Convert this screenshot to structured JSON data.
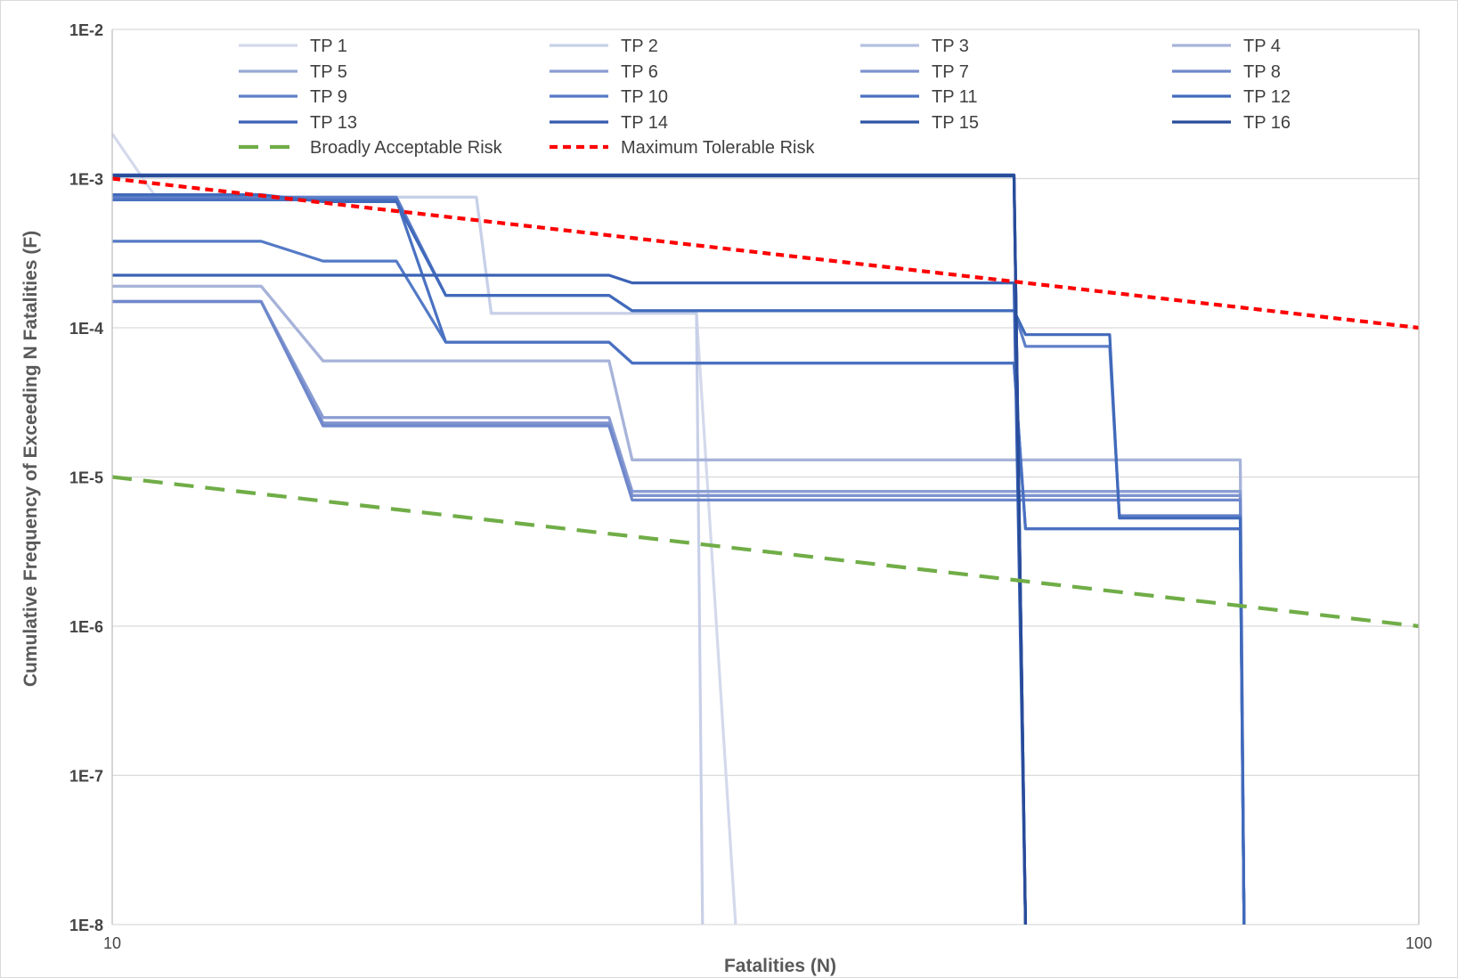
{
  "chart_data": {
    "type": "line",
    "title": "",
    "xlabel": "Fatalities (N)",
    "ylabel": "Cumulative Frequency of Exceeding  N Fatalities (F)",
    "x_scale": "log",
    "y_scale": "log",
    "xlim": [
      10,
      100
    ],
    "ylim": [
      1e-08,
      0.01
    ],
    "x_ticks": [
      {
        "value": 10,
        "label": "10"
      },
      {
        "value": 100,
        "label": "100"
      }
    ],
    "y_ticks": [
      {
        "value": 0.01,
        "label": "1E-2"
      },
      {
        "value": 0.001,
        "label": "1E-3"
      },
      {
        "value": 0.0001,
        "label": "1E-4"
      },
      {
        "value": 1e-05,
        "label": "1E-5"
      },
      {
        "value": 1e-06,
        "label": "1E-6"
      },
      {
        "value": 1e-07,
        "label": "1E-7"
      },
      {
        "value": 1e-08,
        "label": "1E-8"
      }
    ],
    "grid": "horizontal",
    "legend_position": "top",
    "series": [
      {
        "name": "TP 1",
        "color": "#d4d9ec",
        "style": "solid",
        "points": [
          [
            10,
            0.002
          ],
          [
            10.8,
            0.00075
          ],
          [
            19,
            0.00075
          ],
          [
            19.5,
            0.000125
          ],
          [
            28,
            0.000125
          ],
          [
            30,
            1e-08
          ]
        ]
      },
      {
        "name": "TP 2",
        "color": "#c8d0e8",
        "style": "solid",
        "points": [
          [
            10,
            0.00078
          ],
          [
            10.8,
            0.00075
          ],
          [
            19,
            0.00075
          ],
          [
            19.5,
            0.000125
          ],
          [
            28,
            0.000125
          ],
          [
            28.3,
            1e-08
          ]
        ]
      },
      {
        "name": "TP 3",
        "color": "#b4c0e0",
        "style": "solid",
        "points": [
          [
            10,
            0.00019
          ],
          [
            13,
            0.00019
          ],
          [
            14.5,
            6e-05
          ],
          [
            24,
            6e-05
          ],
          [
            25,
            1.3e-05
          ],
          [
            73,
            1.3e-05
          ],
          [
            73.5,
            1e-08
          ]
        ]
      },
      {
        "name": "TP 4",
        "color": "#a7b3d9",
        "style": "solid",
        "points": [
          [
            10,
            0.00019
          ],
          [
            13,
            0.00019
          ],
          [
            14.5,
            6e-05
          ],
          [
            24,
            6e-05
          ],
          [
            25,
            1.3e-05
          ],
          [
            73,
            1.3e-05
          ],
          [
            73.5,
            1e-08
          ]
        ]
      },
      {
        "name": "TP 5",
        "color": "#99a9d7",
        "style": "solid",
        "points": [
          [
            10,
            0.00015
          ],
          [
            13,
            0.00015
          ],
          [
            14.5,
            2.5e-05
          ],
          [
            24,
            2.5e-05
          ],
          [
            25,
            8e-06
          ],
          [
            73,
            8e-06
          ],
          [
            73.5,
            1e-08
          ]
        ]
      },
      {
        "name": "TP 6",
        "color": "#8a9dd2",
        "style": "solid",
        "points": [
          [
            10,
            0.00015
          ],
          [
            13,
            0.00015
          ],
          [
            14.5,
            2.5e-05
          ],
          [
            24,
            2.5e-05
          ],
          [
            25,
            8e-06
          ],
          [
            73,
            8e-06
          ],
          [
            73.5,
            1e-08
          ]
        ]
      },
      {
        "name": "TP 7",
        "color": "#7e93cf",
        "style": "solid",
        "points": [
          [
            10,
            0.00015
          ],
          [
            13,
            0.00015
          ],
          [
            14.5,
            2.3e-05
          ],
          [
            24,
            2.3e-05
          ],
          [
            25,
            7.5e-06
          ],
          [
            73,
            7.5e-06
          ],
          [
            73.5,
            1e-08
          ]
        ]
      },
      {
        "name": "TP 8",
        "color": "#6f88cb",
        "style": "solid",
        "points": [
          [
            10,
            0.00015
          ],
          [
            13,
            0.00015
          ],
          [
            14.5,
            2.2e-05
          ],
          [
            24,
            2.2e-05
          ],
          [
            25,
            7e-06
          ],
          [
            73,
            7e-06
          ],
          [
            73.5,
            1e-08
          ]
        ]
      },
      {
        "name": "TP 9",
        "color": "#5f7fc8",
        "style": "solid",
        "points": [
          [
            10,
            0.00075
          ],
          [
            14.5,
            0.00075
          ],
          [
            16.5,
            0.00075
          ],
          [
            18,
            0.000165
          ],
          [
            24,
            0.000165
          ],
          [
            25,
            0.00013
          ],
          [
            49,
            0.00013
          ],
          [
            50,
            7.5e-05
          ],
          [
            58,
            7.5e-05
          ],
          [
            59,
            5.5e-06
          ],
          [
            73,
            5.5e-06
          ],
          [
            73.5,
            1e-08
          ]
        ]
      },
      {
        "name": "TP 10",
        "color": "#5479c6",
        "style": "solid",
        "points": [
          [
            10,
            0.00038
          ],
          [
            13,
            0.00038
          ],
          [
            14.5,
            0.00028
          ],
          [
            16.5,
            0.00028
          ],
          [
            18,
            8e-05
          ],
          [
            24,
            8e-05
          ],
          [
            25,
            5.8e-05
          ],
          [
            49,
            5.8e-05
          ],
          [
            50,
            4.5e-06
          ],
          [
            73,
            4.5e-06
          ],
          [
            73.5,
            1e-08
          ]
        ]
      },
      {
        "name": "TP 11",
        "color": "#4a71c1",
        "style": "solid",
        "points": [
          [
            10,
            0.00072
          ],
          [
            14.5,
            0.00072
          ],
          [
            16.5,
            0.00072
          ],
          [
            18,
            8e-05
          ],
          [
            24,
            8e-05
          ],
          [
            25,
            5.8e-05
          ],
          [
            49,
            5.8e-05
          ],
          [
            50,
            4.5e-06
          ],
          [
            73,
            4.5e-06
          ],
          [
            73.5,
            1e-08
          ]
        ]
      },
      {
        "name": "TP 12",
        "color": "#416abb",
        "style": "solid",
        "points": [
          [
            10,
            0.00078
          ],
          [
            13,
            0.00078
          ],
          [
            14.5,
            0.0007
          ],
          [
            16.5,
            0.0007
          ],
          [
            18,
            0.000165
          ],
          [
            24,
            0.000165
          ],
          [
            25,
            0.00013
          ],
          [
            49,
            0.00013
          ],
          [
            50,
            9e-05
          ],
          [
            58,
            9e-05
          ],
          [
            59,
            5.3e-06
          ],
          [
            73,
            5.3e-06
          ],
          [
            73.5,
            1e-08
          ]
        ]
      },
      {
        "name": "TP 13",
        "color": "#3a62b5",
        "style": "solid",
        "points": [
          [
            10,
            0.000225
          ],
          [
            24,
            0.000225
          ],
          [
            25,
            0.0002
          ],
          [
            49,
            0.0002
          ],
          [
            50,
            1e-08
          ]
        ]
      },
      {
        "name": "TP 14",
        "color": "#345bae",
        "style": "solid",
        "points": [
          [
            10,
            0.00106
          ],
          [
            49,
            0.00106
          ],
          [
            50,
            1e-08
          ]
        ]
      },
      {
        "name": "TP 15",
        "color": "#2e54a5",
        "style": "solid",
        "points": [
          [
            10,
            0.00104
          ],
          [
            49,
            0.00104
          ],
          [
            50,
            1e-08
          ]
        ]
      },
      {
        "name": "TP 16",
        "color": "#284c9a",
        "style": "solid",
        "points": [
          [
            10,
            0.00105
          ],
          [
            49,
            0.00105
          ],
          [
            50,
            1e-08
          ]
        ]
      },
      {
        "name": "Broadly Acceptable Risk",
        "color": "#70ad47",
        "style": "dashed",
        "points": [
          [
            10,
            1e-05
          ],
          [
            100,
            1e-06
          ]
        ]
      },
      {
        "name": "Maximum Tolerable Risk",
        "color": "#ff0000",
        "style": "dotted",
        "points": [
          [
            10,
            0.001
          ],
          [
            100,
            0.0001
          ]
        ]
      }
    ]
  }
}
